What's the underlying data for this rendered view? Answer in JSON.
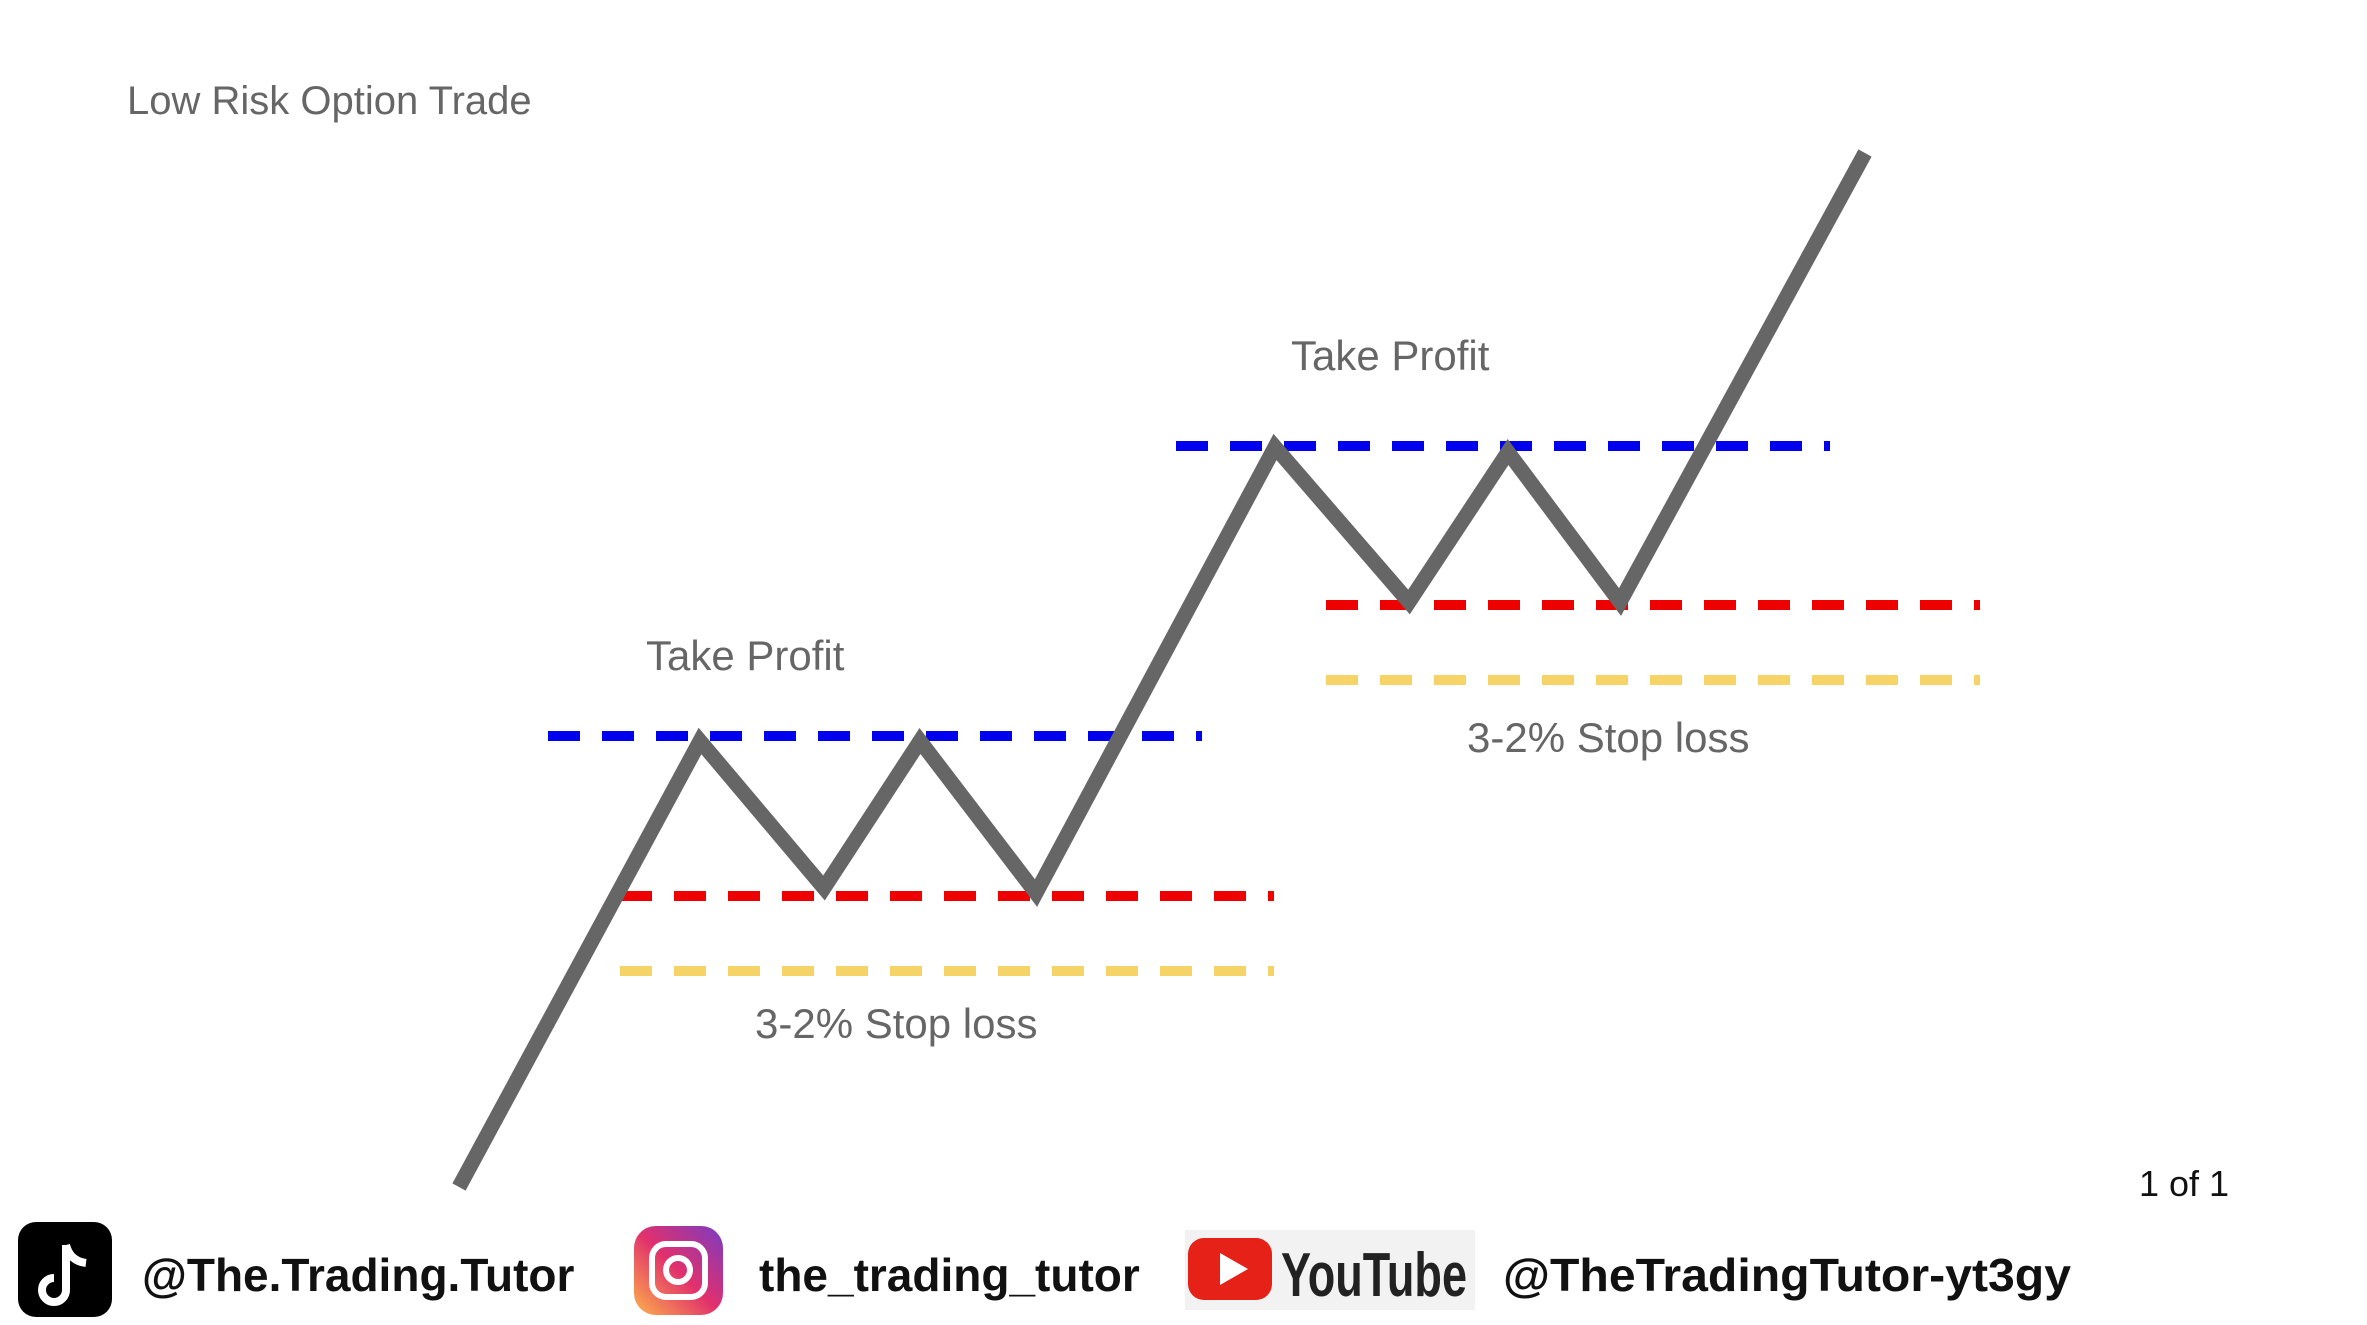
{
  "header": {
    "title": "Low Risk Option Trade"
  },
  "diagram": {
    "labels": [
      {
        "take_profit": "Take Profit",
        "stop_loss": "3-2% Stop loss"
      },
      {
        "take_profit": "Take Profit",
        "stop_loss": "3-2% Stop loss"
      }
    ]
  },
  "page_indicator": "1 of 1",
  "footer": {
    "tiktok": "@The.Trading.Tutor",
    "instagram": "the_trading_tutor",
    "youtube_logo": "YouTube",
    "youtube": "@TheTradingTutor-yt3gy"
  }
}
